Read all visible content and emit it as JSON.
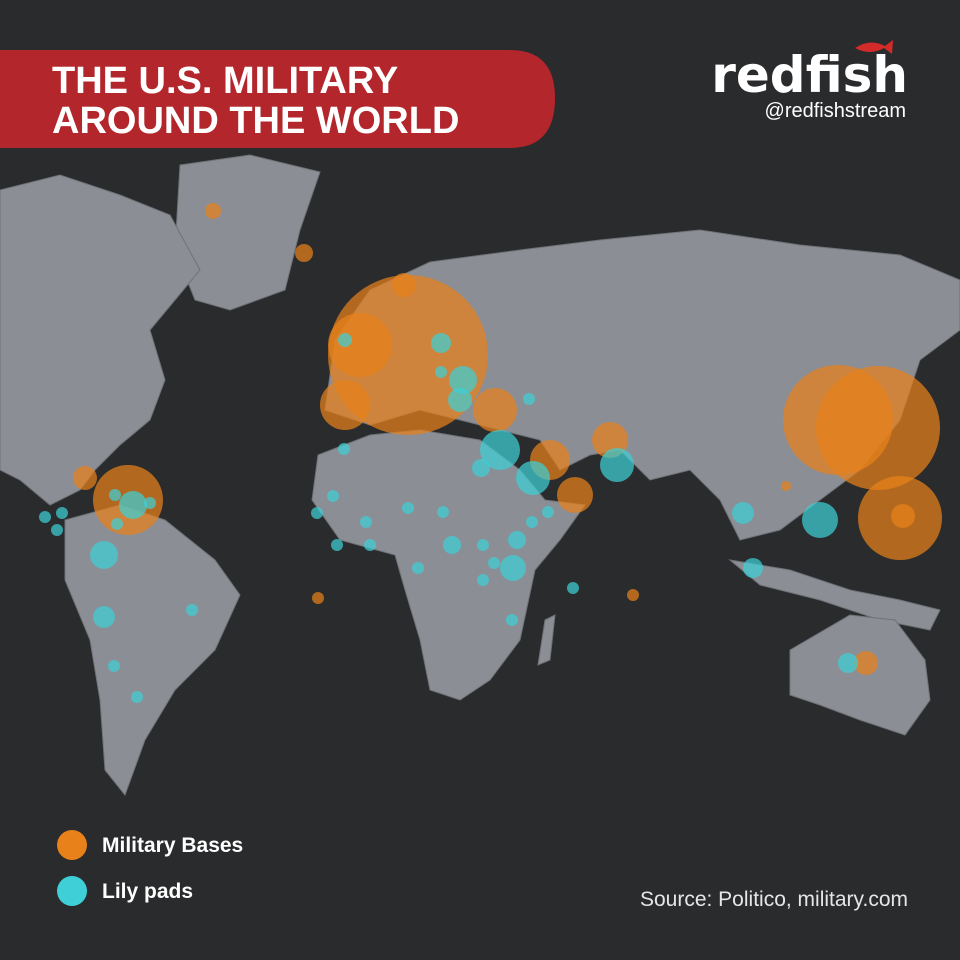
{
  "header": {
    "title_lines": [
      "THE U.S. MILITARY",
      "AROUND THE WORLD"
    ],
    "brand": "redfish",
    "handle": "@redfishstream"
  },
  "legend": [
    {
      "label": "Military Bases",
      "color": "#e8811a"
    },
    {
      "label": "Lily pads",
      "color": "#3fcfd6"
    }
  ],
  "source": "Source: Politico, military.com"
}
